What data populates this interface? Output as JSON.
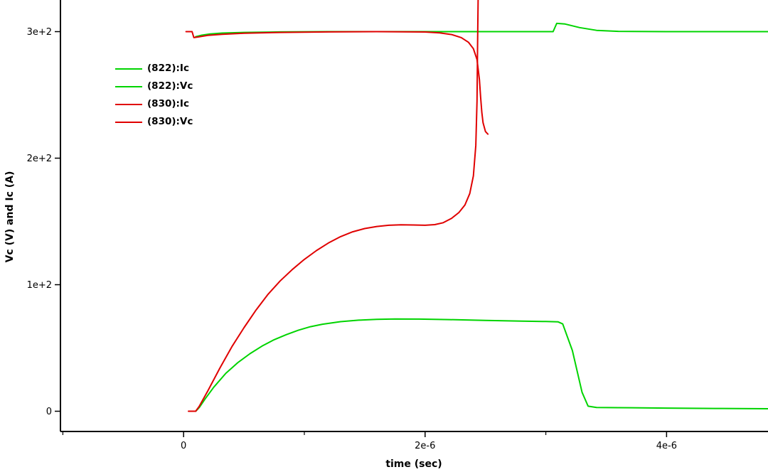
{
  "figure": {
    "background": "#ffffff",
    "axis_color": "#000000",
    "green": "#00d400",
    "red": "#e00000"
  },
  "chart_data": {
    "type": "line",
    "title": "",
    "xlabel": "time (sec)",
    "ylabel": "Vc (V) and Ic (A)",
    "xlim": [
      -1.02e-06,
      4.84e-06
    ],
    "ylim": [
      -16,
      325
    ],
    "grid": false,
    "legend_position": "upper-left",
    "x_major_ticks": [
      {
        "value": 0,
        "label": "0"
      },
      {
        "value": 2e-06,
        "label": "2e-6"
      },
      {
        "value": 4e-06,
        "label": "4e-6"
      }
    ],
    "x_minor_ticks": [
      -1e-06,
      1e-06,
      3e-06
    ],
    "y_major_ticks": [
      {
        "value": 0,
        "label": "0"
      },
      {
        "value": 100,
        "label": "1e+2"
      },
      {
        "value": 200,
        "label": "2e+2"
      },
      {
        "value": 300,
        "label": "3e+2"
      }
    ],
    "series": [
      {
        "name": "(822):Ic",
        "color": "#00d400",
        "points": [
          [
            1e-07,
            0
          ],
          [
            1.3e-07,
            3
          ],
          [
            1.8e-07,
            10
          ],
          [
            2.5e-07,
            19
          ],
          [
            3.5e-07,
            30
          ],
          [
            4.5e-07,
            38.5
          ],
          [
            5.5e-07,
            45.5
          ],
          [
            6.5e-07,
            51.5
          ],
          [
            7.5e-07,
            56.5
          ],
          [
            8.5e-07,
            60.5
          ],
          [
            9.5e-07,
            64
          ],
          [
            1.05e-06,
            66.8
          ],
          [
            1.15e-06,
            68.8
          ],
          [
            1.3e-06,
            70.8
          ],
          [
            1.45e-06,
            72
          ],
          [
            1.6e-06,
            72.6
          ],
          [
            1.75e-06,
            72.9
          ],
          [
            1.95e-06,
            72.8
          ],
          [
            2.2e-06,
            72.4
          ],
          [
            2.5e-06,
            71.8
          ],
          [
            2.8e-06,
            71.2
          ],
          [
            3e-06,
            70.9
          ],
          [
            3.1e-06,
            70.7
          ],
          [
            3.14e-06,
            69
          ],
          [
            3.22e-06,
            48
          ],
          [
            3.3e-06,
            15
          ],
          [
            3.35e-06,
            4.0
          ],
          [
            3.42e-06,
            3.0
          ],
          [
            3.6e-06,
            2.8
          ],
          [
            4e-06,
            2.5
          ],
          [
            4.4e-06,
            2.2
          ],
          [
            4.84e-06,
            2.0
          ]
        ]
      },
      {
        "name": "(822):Vc",
        "color": "#00d400",
        "points": [
          [
            1e-07,
            296.0
          ],
          [
            1.5e-07,
            297.2
          ],
          [
            2.2e-07,
            298.2
          ],
          [
            3.2e-07,
            298.9
          ],
          [
            5e-07,
            299.4
          ],
          [
            8e-07,
            299.8
          ],
          [
            1.2e-06,
            300
          ],
          [
            2e-06,
            300
          ],
          [
            2.6e-06,
            300
          ],
          [
            3.06e-06,
            300
          ],
          [
            3.09e-06,
            306.5
          ],
          [
            3.16e-06,
            306
          ],
          [
            3.28e-06,
            303.2
          ],
          [
            3.42e-06,
            301
          ],
          [
            3.6e-06,
            300.2
          ],
          [
            4e-06,
            300
          ],
          [
            4.84e-06,
            300
          ]
        ]
      },
      {
        "name": "(830):Ic",
        "color": "#e00000",
        "points": [
          [
            4e-08,
            0
          ],
          [
            1e-07,
            0
          ],
          [
            1.3e-07,
            4
          ],
          [
            2e-07,
            16
          ],
          [
            3e-07,
            34
          ],
          [
            4e-07,
            51
          ],
          [
            5e-07,
            66
          ],
          [
            6e-07,
            80
          ],
          [
            7e-07,
            92.5
          ],
          [
            8e-07,
            103
          ],
          [
            9e-07,
            112
          ],
          [
            1e-06,
            120
          ],
          [
            1.1e-06,
            127
          ],
          [
            1.2e-06,
            133
          ],
          [
            1.3e-06,
            138
          ],
          [
            1.4e-06,
            141.8
          ],
          [
            1.5e-06,
            144.4
          ],
          [
            1.6e-06,
            146
          ],
          [
            1.7e-06,
            147
          ],
          [
            1.8e-06,
            147.3
          ],
          [
            1.9e-06,
            147.2
          ],
          [
            2e-06,
            147
          ],
          [
            2.08e-06,
            147.5
          ],
          [
            2.15e-06,
            149
          ],
          [
            2.22e-06,
            152.5
          ],
          [
            2.28e-06,
            157
          ],
          [
            2.33e-06,
            163
          ],
          [
            2.37e-06,
            172
          ],
          [
            2.4e-06,
            186
          ],
          [
            2.42e-06,
            210
          ],
          [
            2.43e-06,
            245
          ],
          [
            2.435e-06,
            290
          ],
          [
            2.44e-06,
            332
          ]
        ]
      },
      {
        "name": "(830):Vc",
        "color": "#e00000",
        "points": [
          [
            2e-08,
            300
          ],
          [
            7e-08,
            300
          ],
          [
            8.5e-08,
            295.3
          ],
          [
            1.2e-07,
            295.8
          ],
          [
            2e-07,
            297
          ],
          [
            3.2e-07,
            297.9
          ],
          [
            5e-07,
            298.7
          ],
          [
            8e-07,
            299.4
          ],
          [
            1.2e-06,
            299.8
          ],
          [
            1.6e-06,
            300
          ],
          [
            2e-06,
            299.7
          ],
          [
            2.12e-06,
            299
          ],
          [
            2.22e-06,
            297.7
          ],
          [
            2.3e-06,
            295.3
          ],
          [
            2.36e-06,
            291.5
          ],
          [
            2.4e-06,
            286.5
          ],
          [
            2.43e-06,
            278
          ],
          [
            2.45e-06,
            262
          ],
          [
            2.46e-06,
            248
          ],
          [
            2.47e-06,
            236
          ],
          [
            2.48e-06,
            228
          ],
          [
            2.5e-06,
            221
          ],
          [
            2.52e-06,
            219
          ]
        ]
      }
    ]
  }
}
